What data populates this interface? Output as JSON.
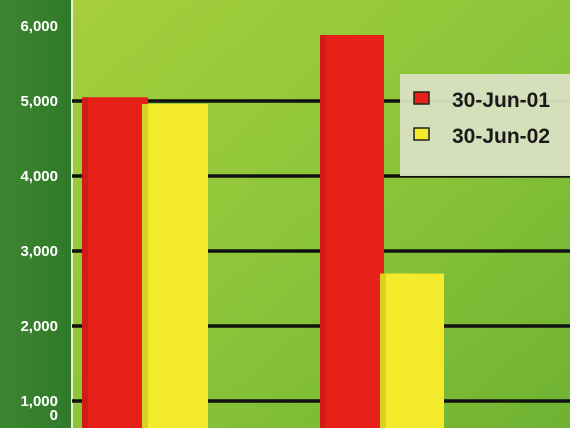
{
  "chart_data": {
    "type": "bar",
    "title": "",
    "xlabel": "",
    "ylabel": "",
    "categories": [
      "",
      ""
    ],
    "ylim": [
      0,
      6000
    ],
    "yticks": [
      {
        "value": 0,
        "label": "0"
      },
      {
        "value": 1000,
        "label": "1,000"
      },
      {
        "value": 2000,
        "label": "2,000"
      },
      {
        "value": 3000,
        "label": "3,000"
      },
      {
        "value": 4000,
        "label": "4,000"
      },
      {
        "value": 5000,
        "label": "5,000"
      },
      {
        "value": 6000,
        "label": "6,000"
      }
    ],
    "grid": true,
    "legend_position": "top-right",
    "series": [
      {
        "name": "30-Jun-01",
        "color": "#e8201a",
        "values": [
          5050,
          5880
        ]
      },
      {
        "name": "30-Jun-02",
        "color": "#f2ea2a",
        "values": [
          4960,
          2700
        ]
      }
    ]
  },
  "colors": {
    "plot_background": "#8cc63a",
    "axis_panel": "#3f8a2c",
    "gridline": "#111111",
    "legend_background": "#d9e2c2"
  }
}
